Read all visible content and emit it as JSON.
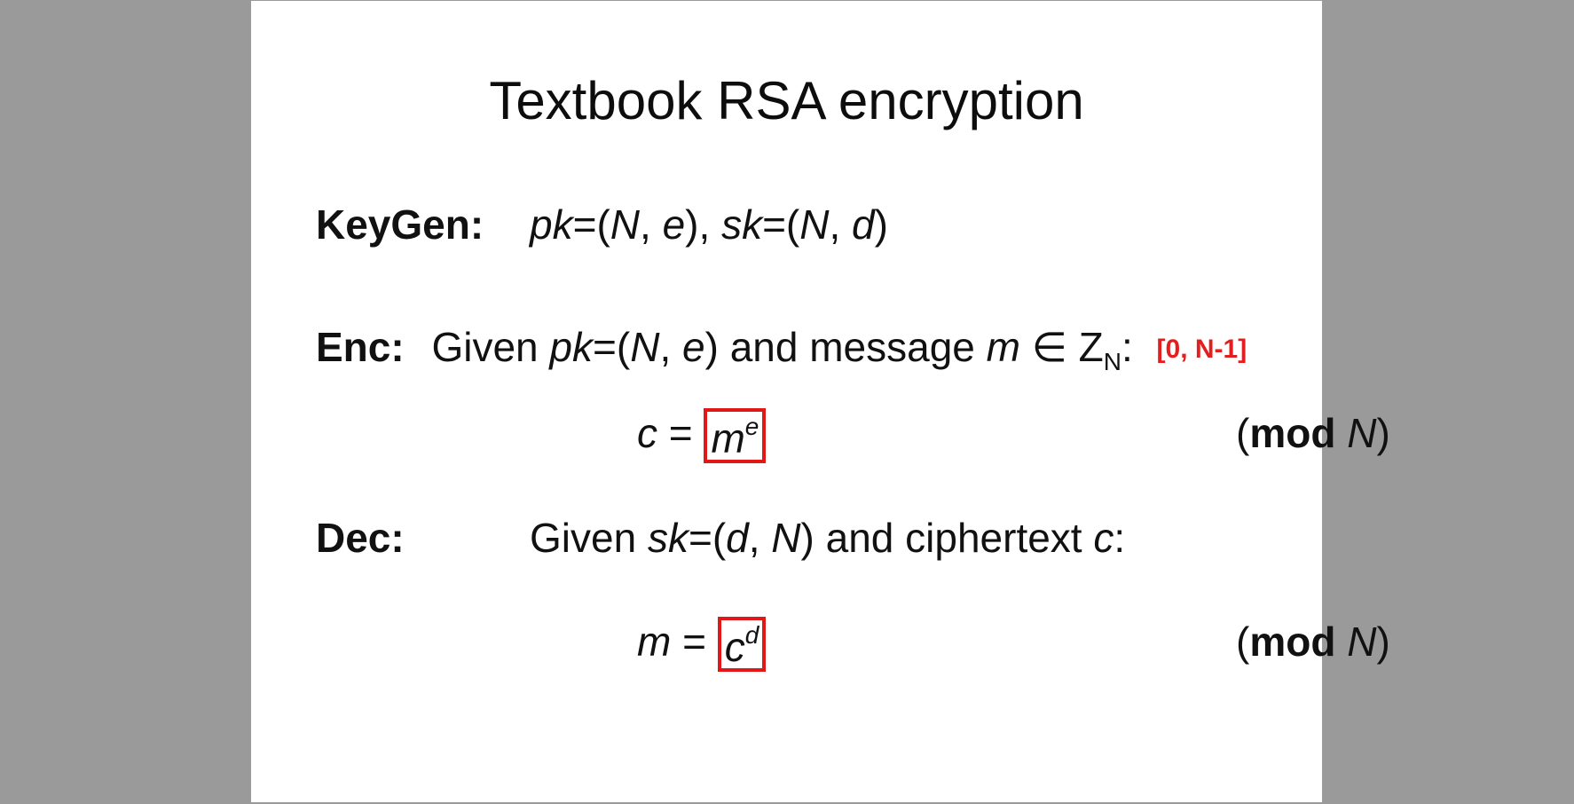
{
  "title": "Textbook RSA encryption",
  "keygen": {
    "label": "KeyGen:",
    "pk_var": "pk",
    "pk_open": "=(",
    "N": "N",
    "comma": ", ",
    "e": "e",
    "pk_close": "), ",
    "sk_var": "sk",
    "sk_open": "=(",
    "d": "d",
    "sk_close": ")"
  },
  "enc": {
    "label": "Enc:",
    "given": "Given ",
    "pk_var": "pk",
    "pk_open": "=(",
    "N": "N",
    "comma": ", ",
    "e": "e",
    "close": ")",
    "and_message": " and message ",
    "m": "m",
    "in_symbol": " ∈ Z",
    "sub_N": "N",
    "colon": ":",
    "range_note": "[0, N-1]"
  },
  "enc_formula": {
    "c": "c",
    "equals": " = ",
    "m": "m",
    "exp": "e",
    "open": "(",
    "mod": "mod",
    "N": "N",
    "close": ")"
  },
  "dec": {
    "label": "Dec:",
    "given": "Given ",
    "sk_var": "sk",
    "open": "=(",
    "d": "d",
    "comma": ", ",
    "N": "N",
    "and_ciphertext": ") and ciphertext ",
    "c": "c",
    "colon": ":"
  },
  "dec_formula": {
    "m": "m",
    "equals": " = ",
    "c": "c",
    "exp": "d",
    "open": "(",
    "mod": "mod",
    "N": "N",
    "close": ")"
  },
  "colors": {
    "highlight_red": "#e01818",
    "page_background": "#9a9a9a",
    "slide_background": "#ffffff"
  }
}
